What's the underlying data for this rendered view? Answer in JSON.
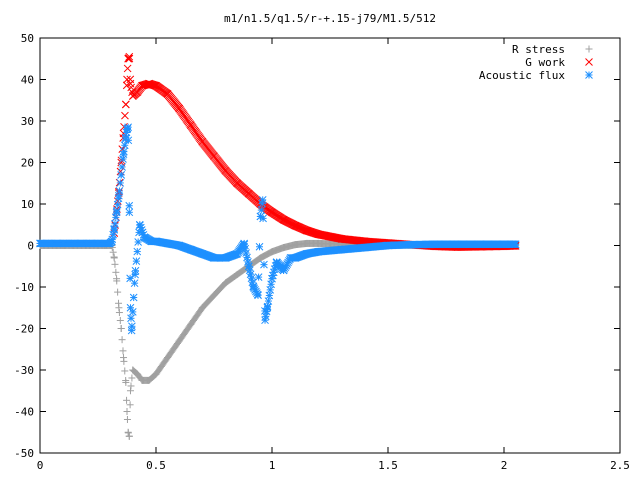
{
  "chart_data": {
    "type": "scatter",
    "title": "m1/n1.5/q1.5/r-+.15-j79/M1.5/512",
    "xlabel": "",
    "ylabel": "",
    "xlim": [
      0,
      2.5
    ],
    "ylim": [
      -50,
      50
    ],
    "x_ticks": [
      "0",
      "0.5",
      "1",
      "1.5",
      "2",
      "2.5"
    ],
    "y_ticks": [
      "-50",
      "-40",
      "-30",
      "-20",
      "-10",
      "0",
      "10",
      "20",
      "30",
      "40",
      "50"
    ],
    "grid": false,
    "legend_position": "top-right",
    "series": [
      {
        "name": "R stress",
        "marker": "plus",
        "color": "#a0a0a0",
        "points": [
          [
            0.0,
            0.0
          ],
          [
            0.1,
            0.0
          ],
          [
            0.2,
            0.0
          ],
          [
            0.28,
            0.0
          ],
          [
            0.31,
            0.0
          ],
          [
            0.32,
            -3
          ],
          [
            0.33,
            -8
          ],
          [
            0.34,
            -15
          ],
          [
            0.35,
            -20
          ],
          [
            0.36,
            -27
          ],
          [
            0.37,
            -33
          ],
          [
            0.375,
            -40
          ],
          [
            0.38,
            -45
          ],
          [
            0.385,
            -46
          ],
          [
            0.39,
            -35
          ],
          [
            0.4,
            -30
          ],
          [
            0.42,
            -31
          ],
          [
            0.44,
            -32.5
          ],
          [
            0.47,
            -32.5
          ],
          [
            0.5,
            -31
          ],
          [
            0.55,
            -27
          ],
          [
            0.6,
            -23
          ],
          [
            0.65,
            -19
          ],
          [
            0.7,
            -15
          ],
          [
            0.75,
            -12
          ],
          [
            0.8,
            -9
          ],
          [
            0.85,
            -7
          ],
          [
            0.9,
            -5
          ],
          [
            0.95,
            -3
          ],
          [
            1.0,
            -1.5
          ],
          [
            1.05,
            -0.5
          ],
          [
            1.1,
            0.2
          ],
          [
            1.15,
            0.5
          ],
          [
            1.2,
            0.5
          ],
          [
            1.3,
            0.3
          ],
          [
            1.4,
            0.2
          ],
          [
            1.5,
            0.1
          ],
          [
            1.7,
            0.0
          ],
          [
            1.9,
            0.0
          ],
          [
            2.05,
            0.0
          ]
        ]
      },
      {
        "name": "G work",
        "marker": "cross",
        "color": "#ff0000",
        "points": [
          [
            0.32,
            3
          ],
          [
            0.33,
            8
          ],
          [
            0.34,
            13
          ],
          [
            0.35,
            20
          ],
          [
            0.36,
            27
          ],
          [
            0.37,
            34
          ],
          [
            0.375,
            40
          ],
          [
            0.38,
            45
          ],
          [
            0.385,
            45.5
          ],
          [
            0.39,
            39
          ],
          [
            0.4,
            36
          ],
          [
            0.42,
            37
          ],
          [
            0.44,
            38.5
          ],
          [
            0.47,
            39
          ],
          [
            0.5,
            38.5
          ],
          [
            0.55,
            36.5
          ],
          [
            0.6,
            33
          ],
          [
            0.65,
            29
          ],
          [
            0.7,
            25
          ],
          [
            0.75,
            21.5
          ],
          [
            0.8,
            18
          ],
          [
            0.85,
            15
          ],
          [
            0.9,
            12.5
          ],
          [
            0.95,
            10
          ],
          [
            1.0,
            8
          ],
          [
            1.05,
            6.2
          ],
          [
            1.1,
            4.8
          ],
          [
            1.15,
            3.6
          ],
          [
            1.2,
            2.7
          ],
          [
            1.3,
            1.6
          ],
          [
            1.4,
            1.0
          ],
          [
            1.5,
            0.6
          ],
          [
            1.6,
            0.2
          ],
          [
            1.7,
            -0.2
          ],
          [
            1.8,
            -0.4
          ],
          [
            1.9,
            -0.3
          ],
          [
            2.0,
            -0.2
          ],
          [
            2.05,
            -0.1
          ]
        ]
      },
      {
        "name": "Acoustic flux",
        "marker": "star",
        "color": "#1e90ff",
        "points": [
          [
            0.0,
            0.5
          ],
          [
            0.05,
            0.5
          ],
          [
            0.1,
            0.5
          ],
          [
            0.15,
            0.5
          ],
          [
            0.2,
            0.5
          ],
          [
            0.25,
            0.5
          ],
          [
            0.3,
            0.5
          ],
          [
            0.31,
            1
          ],
          [
            0.32,
            4
          ],
          [
            0.33,
            8
          ],
          [
            0.34,
            12
          ],
          [
            0.35,
            17
          ],
          [
            0.36,
            22
          ],
          [
            0.37,
            26
          ],
          [
            0.375,
            28
          ],
          [
            0.38,
            28.5
          ],
          [
            0.385,
            8
          ],
          [
            0.39,
            -15
          ],
          [
            0.395,
            -20.5
          ],
          [
            0.41,
            -7
          ],
          [
            0.43,
            5
          ],
          [
            0.45,
            2
          ],
          [
            0.48,
            1
          ],
          [
            0.5,
            1
          ],
          [
            0.55,
            0.5
          ],
          [
            0.6,
            0
          ],
          [
            0.65,
            -1
          ],
          [
            0.7,
            -2
          ],
          [
            0.75,
            -3
          ],
          [
            0.8,
            -3
          ],
          [
            0.85,
            -2
          ],
          [
            0.88,
            0.5
          ],
          [
            0.9,
            -5
          ],
          [
            0.92,
            -10
          ],
          [
            0.94,
            -12
          ],
          [
            0.95,
            7
          ],
          [
            0.96,
            11
          ],
          [
            0.97,
            -18
          ],
          [
            0.98,
            -15
          ],
          [
            1.0,
            -8
          ],
          [
            1.02,
            -4
          ],
          [
            1.05,
            -6
          ],
          [
            1.08,
            -3
          ],
          [
            1.1,
            -3
          ],
          [
            1.15,
            -2
          ],
          [
            1.2,
            -1.5
          ],
          [
            1.3,
            -1
          ],
          [
            1.4,
            -0.5
          ],
          [
            1.5,
            0
          ],
          [
            1.6,
            0.2
          ],
          [
            1.7,
            0.3
          ],
          [
            1.8,
            0.3
          ],
          [
            1.9,
            0.3
          ],
          [
            2.0,
            0.3
          ],
          [
            2.05,
            0.3
          ]
        ]
      }
    ]
  }
}
